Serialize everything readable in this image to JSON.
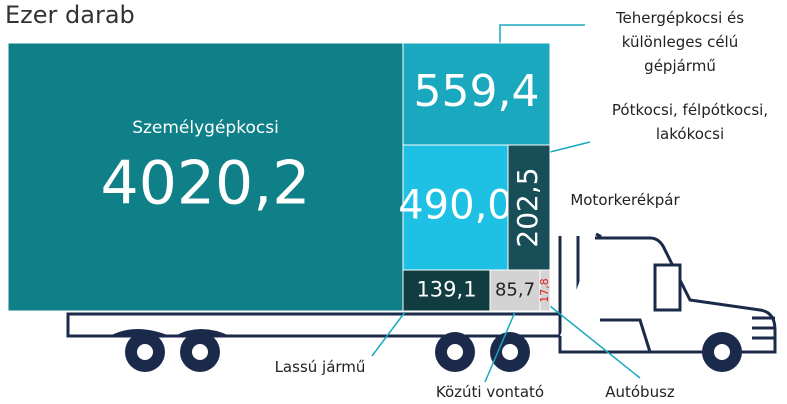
{
  "chart_data": {
    "type": "treemap",
    "title": "Ezer darab",
    "categories": [
      "Személygépkocsi",
      "Tehergépkocsi és\nkülönleges célú gépjármű",
      "Pótkocsi, félpótkocsi,\nlakókocsi",
      "Motorkerékpár",
      "Lassú jármű",
      "Közúti vontató",
      "Autóbusz"
    ],
    "values": [
      4020.2,
      559.4,
      490.0,
      202.5,
      139.1,
      85.7,
      17.8
    ],
    "value_labels": [
      "4020,2",
      "559,4",
      "490,0",
      "202,5",
      "139,1",
      "85,7",
      "17,8"
    ],
    "colors": [
      "#0f8088",
      "#1aa8bf",
      "#1ec0e3",
      "#174e57",
      "#123d40",
      "#d3d3d3",
      "#d3d3d3"
    ]
  }
}
